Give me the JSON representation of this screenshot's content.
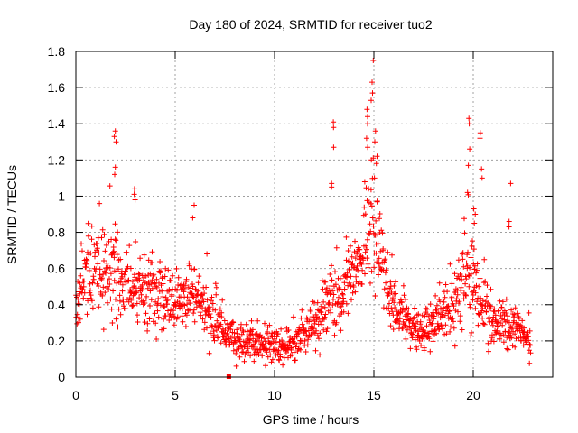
{
  "chart_data": {
    "type": "scatter",
    "title": "Day 180 of 2024, SRMTID for receiver tuo2",
    "xlabel": "GPS time / hours",
    "ylabel": "SRMTID / TECUs",
    "xlim": [
      0,
      24
    ],
    "ylim": [
      0,
      1.8
    ],
    "xticks": [
      0,
      5,
      10,
      15,
      20
    ],
    "yticks": [
      0,
      0.2,
      0.4,
      0.6,
      0.8,
      1,
      1.2,
      1.4,
      1.6,
      1.8
    ],
    "xtick_labels": [
      "0",
      "5",
      "10",
      "15",
      "20"
    ],
    "ytick_labels": [
      "0",
      "0.2",
      "0.4",
      "0.6",
      "0.8",
      "1",
      "1.2",
      "1.4",
      "1.6",
      "1.8"
    ],
    "grid": true,
    "marker": "+",
    "marker_color": "#ff0000",
    "series": [
      {
        "name": "SRMTID",
        "outlier_marker": {
          "x": 7.7,
          "y": 0.0
        },
        "profile": [
          {
            "x": 0.0,
            "center": 0.38,
            "spread": 0.14
          },
          {
            "x": 0.5,
            "center": 0.55,
            "spread": 0.2
          },
          {
            "x": 1.0,
            "center": 0.62,
            "spread": 0.22
          },
          {
            "x": 2.0,
            "center": 0.55,
            "spread": 0.22
          },
          {
            "x": 3.0,
            "center": 0.45,
            "spread": 0.18
          },
          {
            "x": 4.0,
            "center": 0.46,
            "spread": 0.18
          },
          {
            "x": 5.0,
            "center": 0.4,
            "spread": 0.15
          },
          {
            "x": 6.0,
            "center": 0.45,
            "spread": 0.16
          },
          {
            "x": 7.0,
            "center": 0.3,
            "spread": 0.12
          },
          {
            "x": 8.0,
            "center": 0.2,
            "spread": 0.08
          },
          {
            "x": 9.0,
            "center": 0.18,
            "spread": 0.08
          },
          {
            "x": 10.0,
            "center": 0.17,
            "spread": 0.08
          },
          {
            "x": 11.0,
            "center": 0.18,
            "spread": 0.08
          },
          {
            "x": 12.0,
            "center": 0.28,
            "spread": 0.12
          },
          {
            "x": 13.0,
            "center": 0.42,
            "spread": 0.18
          },
          {
            "x": 14.0,
            "center": 0.55,
            "spread": 0.22
          },
          {
            "x": 14.8,
            "center": 0.9,
            "spread": 0.3
          },
          {
            "x": 15.3,
            "center": 0.65,
            "spread": 0.22
          },
          {
            "x": 16.0,
            "center": 0.38,
            "spread": 0.14
          },
          {
            "x": 17.0,
            "center": 0.25,
            "spread": 0.1
          },
          {
            "x": 18.0,
            "center": 0.3,
            "spread": 0.12
          },
          {
            "x": 19.0,
            "center": 0.4,
            "spread": 0.16
          },
          {
            "x": 19.7,
            "center": 0.55,
            "spread": 0.25
          },
          {
            "x": 20.5,
            "center": 0.4,
            "spread": 0.18
          },
          {
            "x": 21.0,
            "center": 0.3,
            "spread": 0.12
          },
          {
            "x": 22.0,
            "center": 0.25,
            "spread": 0.12
          },
          {
            "x": 22.8,
            "center": 0.2,
            "spread": 0.08
          }
        ],
        "spikes": [
          {
            "x": 1.95,
            "values": [
              1.36,
              1.33,
              1.3,
              1.16,
              1.12
            ]
          },
          {
            "x": 3.0,
            "values": [
              1.04,
              1.01,
              0.98
            ]
          },
          {
            "x": 5.95,
            "values": [
              0.95,
              0.88
            ]
          },
          {
            "x": 12.9,
            "values": [
              1.41,
              1.38,
              1.27,
              1.07,
              1.05
            ]
          },
          {
            "x": 14.9,
            "values": [
              1.75,
              1.63,
              1.57,
              1.53
            ]
          },
          {
            "x": 14.7,
            "values": [
              1.48,
              1.44,
              1.4,
              1.32,
              1.27
            ]
          },
          {
            "x": 15.1,
            "values": [
              1.36,
              1.3,
              1.22,
              1.18,
              1.1
            ]
          },
          {
            "x": 19.75,
            "values": [
              1.43,
              1.4,
              1.26,
              1.17,
              1.02
            ]
          },
          {
            "x": 20.4,
            "values": [
              1.35,
              1.32,
              1.15,
              1.1
            ]
          },
          {
            "x": 21.95,
            "values": [
              1.07
            ]
          },
          {
            "x": 20.1,
            "values": [
              0.93,
              0.9,
              0.85
            ]
          },
          {
            "x": 21.8,
            "values": [
              0.86,
              0.83
            ]
          }
        ],
        "x_end": 22.9,
        "point_count": 1400
      }
    ]
  }
}
